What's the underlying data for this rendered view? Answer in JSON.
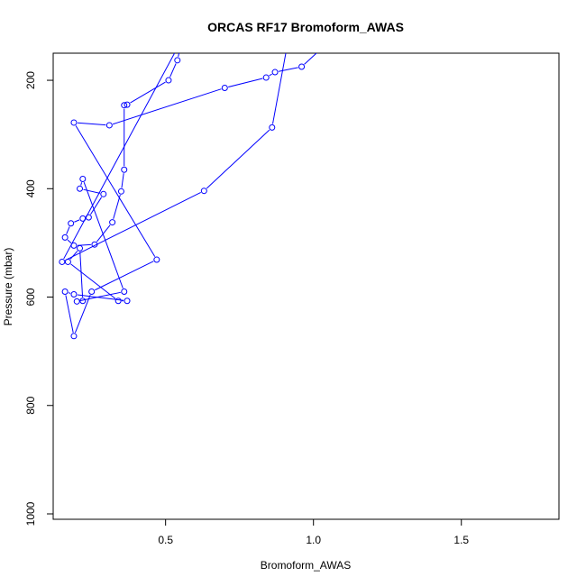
{
  "chart_data": {
    "type": "line",
    "title": "ORCAS RF17 Bromoform_AWAS",
    "xlabel": "Bromoform_AWAS",
    "ylabel": "Pressure (mbar)",
    "xlim": [
      0.12,
      1.83
    ],
    "ylim": [
      1000,
      150
    ],
    "y_reversed": true,
    "x_ticks": [
      0.5,
      1.0,
      1.5
    ],
    "x_tick_labels": [
      "0.5",
      "1.0",
      "1.5"
    ],
    "y_ticks": [
      200,
      400,
      600,
      800,
      1000
    ],
    "y_tick_labels": [
      "200",
      "400",
      "600",
      "800",
      "1000"
    ],
    "grid": false,
    "marker": "open-circle",
    "series_color": "#0000ff",
    "series": [
      {
        "points": [
          [
            0.57,
            90
          ],
          [
            0.54,
            163
          ],
          [
            0.51,
            200
          ],
          [
            0.37,
            245
          ],
          [
            0.36,
            246
          ],
          [
            0.36,
            365
          ],
          [
            0.35,
            405
          ],
          [
            0.32,
            462
          ],
          [
            0.26,
            503
          ],
          [
            0.19,
            505
          ],
          [
            0.16,
            490
          ],
          [
            0.18,
            464
          ],
          [
            0.22,
            455
          ],
          [
            0.24,
            453
          ],
          [
            0.29,
            410
          ],
          [
            0.21,
            400
          ],
          [
            0.22,
            382
          ],
          [
            0.36,
            590
          ],
          [
            0.2,
            608
          ],
          [
            0.22,
            607
          ],
          [
            0.21,
            510
          ],
          [
            0.17,
            535
          ],
          [
            0.34,
            607
          ],
          [
            0.37,
            607
          ],
          [
            0.19,
            595
          ],
          [
            0.16,
            590
          ],
          [
            0.19,
            672
          ],
          [
            0.25,
            590
          ],
          [
            0.47,
            531
          ],
          [
            0.19,
            278
          ],
          [
            0.31,
            283
          ],
          [
            0.7,
            214
          ],
          [
            0.84,
            195
          ],
          [
            0.87,
            185
          ],
          [
            0.96,
            175
          ],
          [
            1.03,
            140
          ],
          [
            0.92,
            110
          ],
          [
            0.86,
            287
          ],
          [
            0.63,
            404
          ],
          [
            0.15,
            535
          ],
          [
            0.55,
            130
          ],
          [
            0.75,
            100
          ]
        ]
      }
    ]
  }
}
